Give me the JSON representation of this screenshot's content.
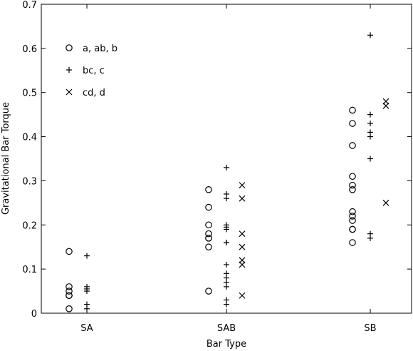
{
  "chart_data": {
    "type": "scatter",
    "xlabel": "Bar Type",
    "ylabel": "Gravitational Bar Torque",
    "ylim": [
      0,
      0.7
    ],
    "yticks": [
      "0",
      "0.1",
      "0.2",
      "0.3",
      "0.4",
      "0.5",
      "0.6",
      "0.7"
    ],
    "categories": [
      "SA",
      "SAB",
      "SB"
    ],
    "grid": false,
    "legend_position": "top-left",
    "series": [
      {
        "name": "a, ab, b",
        "marker": "circle",
        "values": [
          [
            0.14,
            0.06,
            0.05,
            0.04,
            0.04,
            0.01
          ],
          [
            0.28,
            0.24,
            0.2,
            0.18,
            0.17,
            0.17,
            0.15,
            0.05
          ],
          [
            0.46,
            0.43,
            0.38,
            0.31,
            0.29,
            0.28,
            0.23,
            0.22,
            0.21,
            0.19,
            0.19,
            0.16
          ]
        ]
      },
      {
        "name": "bc, c",
        "marker": "plus",
        "values": [
          [
            0.13,
            0.06,
            0.055,
            0.05,
            0.02,
            0.01
          ],
          [
            0.33,
            0.27,
            0.26,
            0.2,
            0.195,
            0.19,
            0.16,
            0.16,
            0.11,
            0.09,
            0.08,
            0.07,
            0.06,
            0.03,
            0.02
          ],
          [
            0.63,
            0.45,
            0.43,
            0.41,
            0.4,
            0.35,
            0.18,
            0.17
          ]
        ]
      },
      {
        "name": "cd, d",
        "marker": "cross",
        "values": [
          [],
          [
            0.29,
            0.26,
            0.18,
            0.15,
            0.12,
            0.11,
            0.04
          ],
          [
            0.48,
            0.47,
            0.25
          ]
        ]
      }
    ]
  }
}
